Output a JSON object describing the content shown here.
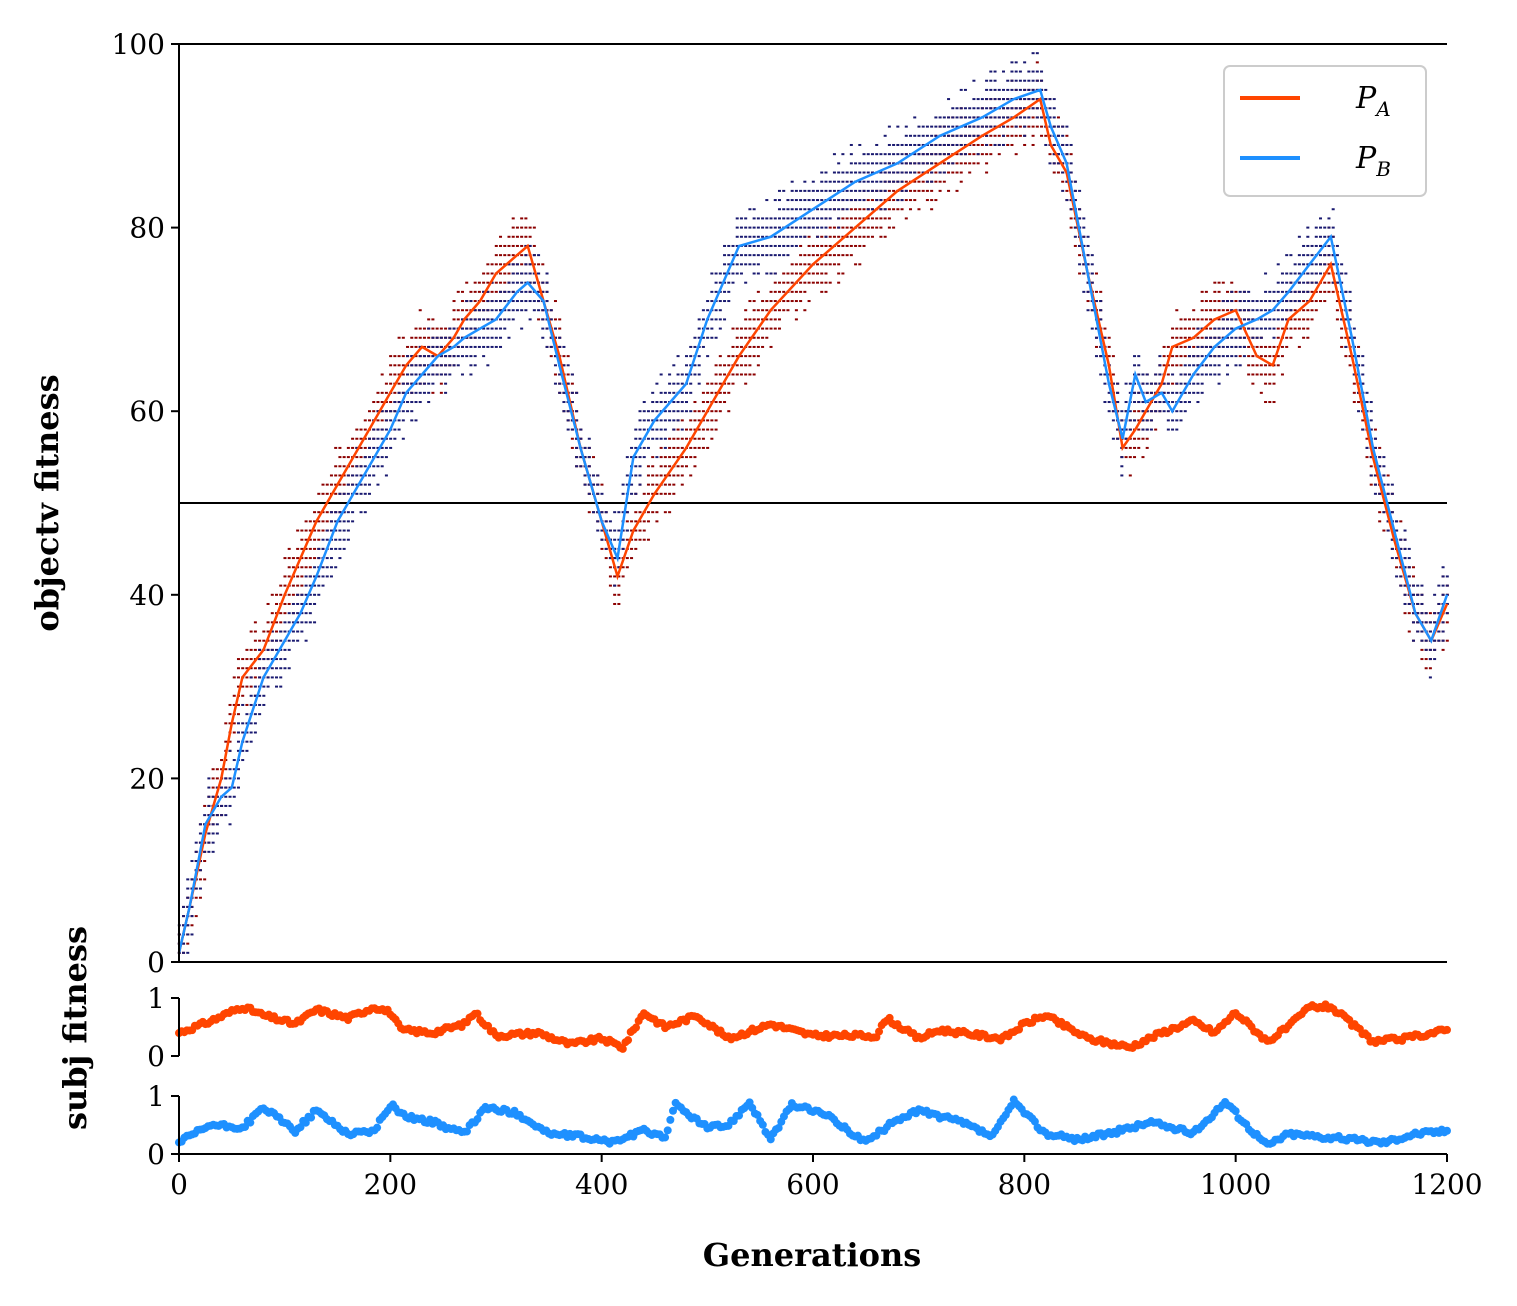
{
  "chart_data": [
    {
      "type": "line",
      "panel": "objective",
      "ylabel": "objectv fitness",
      "xlabel": "Generations",
      "xlim": [
        0,
        1200
      ],
      "ylim": [
        0,
        100
      ],
      "xticks": [
        "0",
        "200",
        "400",
        "600",
        "800",
        "1000",
        "1200"
      ],
      "yticks": [
        "0",
        "20",
        "40",
        "60",
        "80",
        "100"
      ],
      "reference_line_y": 50,
      "legend_position": "top-right",
      "series": [
        {
          "name": "P_A",
          "name_main": "P",
          "name_sub": "A",
          "color": "#ff4500",
          "scatter_color": "#8b0000",
          "x": [
            0,
            10,
            25,
            40,
            50,
            60,
            80,
            100,
            115,
            130,
            150,
            175,
            200,
            215,
            230,
            245,
            260,
            270,
            285,
            300,
            320,
            330,
            345,
            360,
            380,
            400,
            415,
            430,
            450,
            480,
            500,
            530,
            560,
            600,
            640,
            680,
            720,
            760,
            790,
            815,
            825,
            840,
            860,
            880,
            893,
            905,
            915,
            930,
            940,
            960,
            980,
            1000,
            1020,
            1035,
            1050,
            1070,
            1090,
            1110,
            1130,
            1150,
            1170,
            1185,
            1200
          ],
          "y": [
            1,
            6,
            14,
            20,
            26,
            31,
            34,
            40,
            44,
            48,
            52,
            57,
            62,
            65,
            67,
            66,
            68,
            70,
            72,
            75,
            77,
            78,
            72,
            66,
            56,
            48,
            42,
            47,
            51,
            56,
            60,
            66,
            71,
            76,
            80,
            84,
            87,
            90,
            92,
            94,
            89,
            86,
            75,
            65,
            56,
            58,
            60,
            63,
            67,
            68,
            70,
            71,
            66,
            65,
            70,
            72,
            76,
            66,
            55,
            46,
            38,
            35,
            39
          ]
        },
        {
          "name": "P_B",
          "name_main": "P",
          "name_sub": "B",
          "color": "#1e90ff",
          "scatter_color": "#191970",
          "x": [
            0,
            10,
            25,
            40,
            50,
            60,
            80,
            100,
            115,
            130,
            150,
            175,
            200,
            215,
            230,
            245,
            260,
            270,
            285,
            300,
            320,
            330,
            345,
            360,
            380,
            400,
            415,
            430,
            450,
            480,
            500,
            530,
            560,
            600,
            640,
            680,
            720,
            760,
            790,
            815,
            825,
            840,
            860,
            880,
            893,
            905,
            915,
            930,
            940,
            960,
            980,
            1000,
            1020,
            1035,
            1050,
            1070,
            1090,
            1110,
            1130,
            1150,
            1170,
            1185,
            1200
          ],
          "y": [
            1,
            6,
            15,
            18,
            19,
            24,
            31,
            35,
            38,
            42,
            48,
            53,
            58,
            62,
            64,
            66,
            67,
            68,
            69,
            70,
            73,
            74,
            72,
            65,
            56,
            48,
            44,
            55,
            59,
            63,
            70,
            78,
            79,
            82,
            85,
            87,
            90,
            92,
            94,
            95,
            91,
            87,
            75,
            63,
            57,
            64,
            61,
            62,
            60,
            64,
            67,
            69,
            70,
            71,
            73,
            76,
            79,
            68,
            56,
            47,
            38,
            35,
            40
          ]
        }
      ]
    },
    {
      "type": "scatter",
      "panel": "subjective-A",
      "ylabel": "subj fitness",
      "xlim": [
        0,
        1200
      ],
      "ylim": [
        0,
        1
      ],
      "yticks": [
        "0",
        "1"
      ],
      "color": "#ff4500",
      "x": [
        0,
        30,
        60,
        80,
        110,
        130,
        160,
        185,
        200,
        210,
        240,
        270,
        280,
        300,
        340,
        370,
        400,
        420,
        440,
        460,
        490,
        520,
        560,
        600,
        660,
        670,
        700,
        720,
        780,
        800,
        820,
        860,
        900,
        930,
        960,
        980,
        1000,
        1030,
        1050,
        1070,
        1090,
        1110,
        1130,
        1160,
        1200
      ],
      "y": [
        0.4,
        0.6,
        0.85,
        0.7,
        0.55,
        0.8,
        0.65,
        0.85,
        0.75,
        0.45,
        0.4,
        0.55,
        0.75,
        0.35,
        0.4,
        0.2,
        0.3,
        0.15,
        0.75,
        0.5,
        0.7,
        0.3,
        0.55,
        0.35,
        0.35,
        0.65,
        0.3,
        0.45,
        0.3,
        0.55,
        0.7,
        0.3,
        0.15,
        0.4,
        0.6,
        0.4,
        0.75,
        0.25,
        0.5,
        0.85,
        0.85,
        0.55,
        0.25,
        0.3,
        0.45
      ]
    },
    {
      "type": "scatter",
      "panel": "subjective-B",
      "xlim": [
        0,
        1200
      ],
      "ylim": [
        0,
        1
      ],
      "yticks": [
        "0",
        "1"
      ],
      "color": "#1e90ff",
      "x": [
        0,
        30,
        60,
        80,
        110,
        130,
        160,
        185,
        200,
        215,
        240,
        270,
        290,
        320,
        350,
        380,
        410,
        440,
        460,
        470,
        500,
        520,
        540,
        560,
        580,
        610,
        650,
        680,
        700,
        740,
        770,
        790,
        820,
        850,
        880,
        920,
        960,
        990,
        1010,
        1030,
        1050,
        1080,
        1110,
        1140,
        1170,
        1200
      ],
      "y": [
        0.2,
        0.5,
        0.45,
        0.8,
        0.4,
        0.75,
        0.35,
        0.4,
        0.85,
        0.65,
        0.55,
        0.35,
        0.8,
        0.7,
        0.35,
        0.3,
        0.2,
        0.4,
        0.3,
        0.85,
        0.45,
        0.5,
        0.9,
        0.25,
        0.85,
        0.7,
        0.2,
        0.6,
        0.75,
        0.55,
        0.3,
        0.9,
        0.35,
        0.25,
        0.35,
        0.55,
        0.35,
        0.9,
        0.5,
        0.15,
        0.35,
        0.3,
        0.25,
        0.2,
        0.35,
        0.4
      ]
    }
  ]
}
